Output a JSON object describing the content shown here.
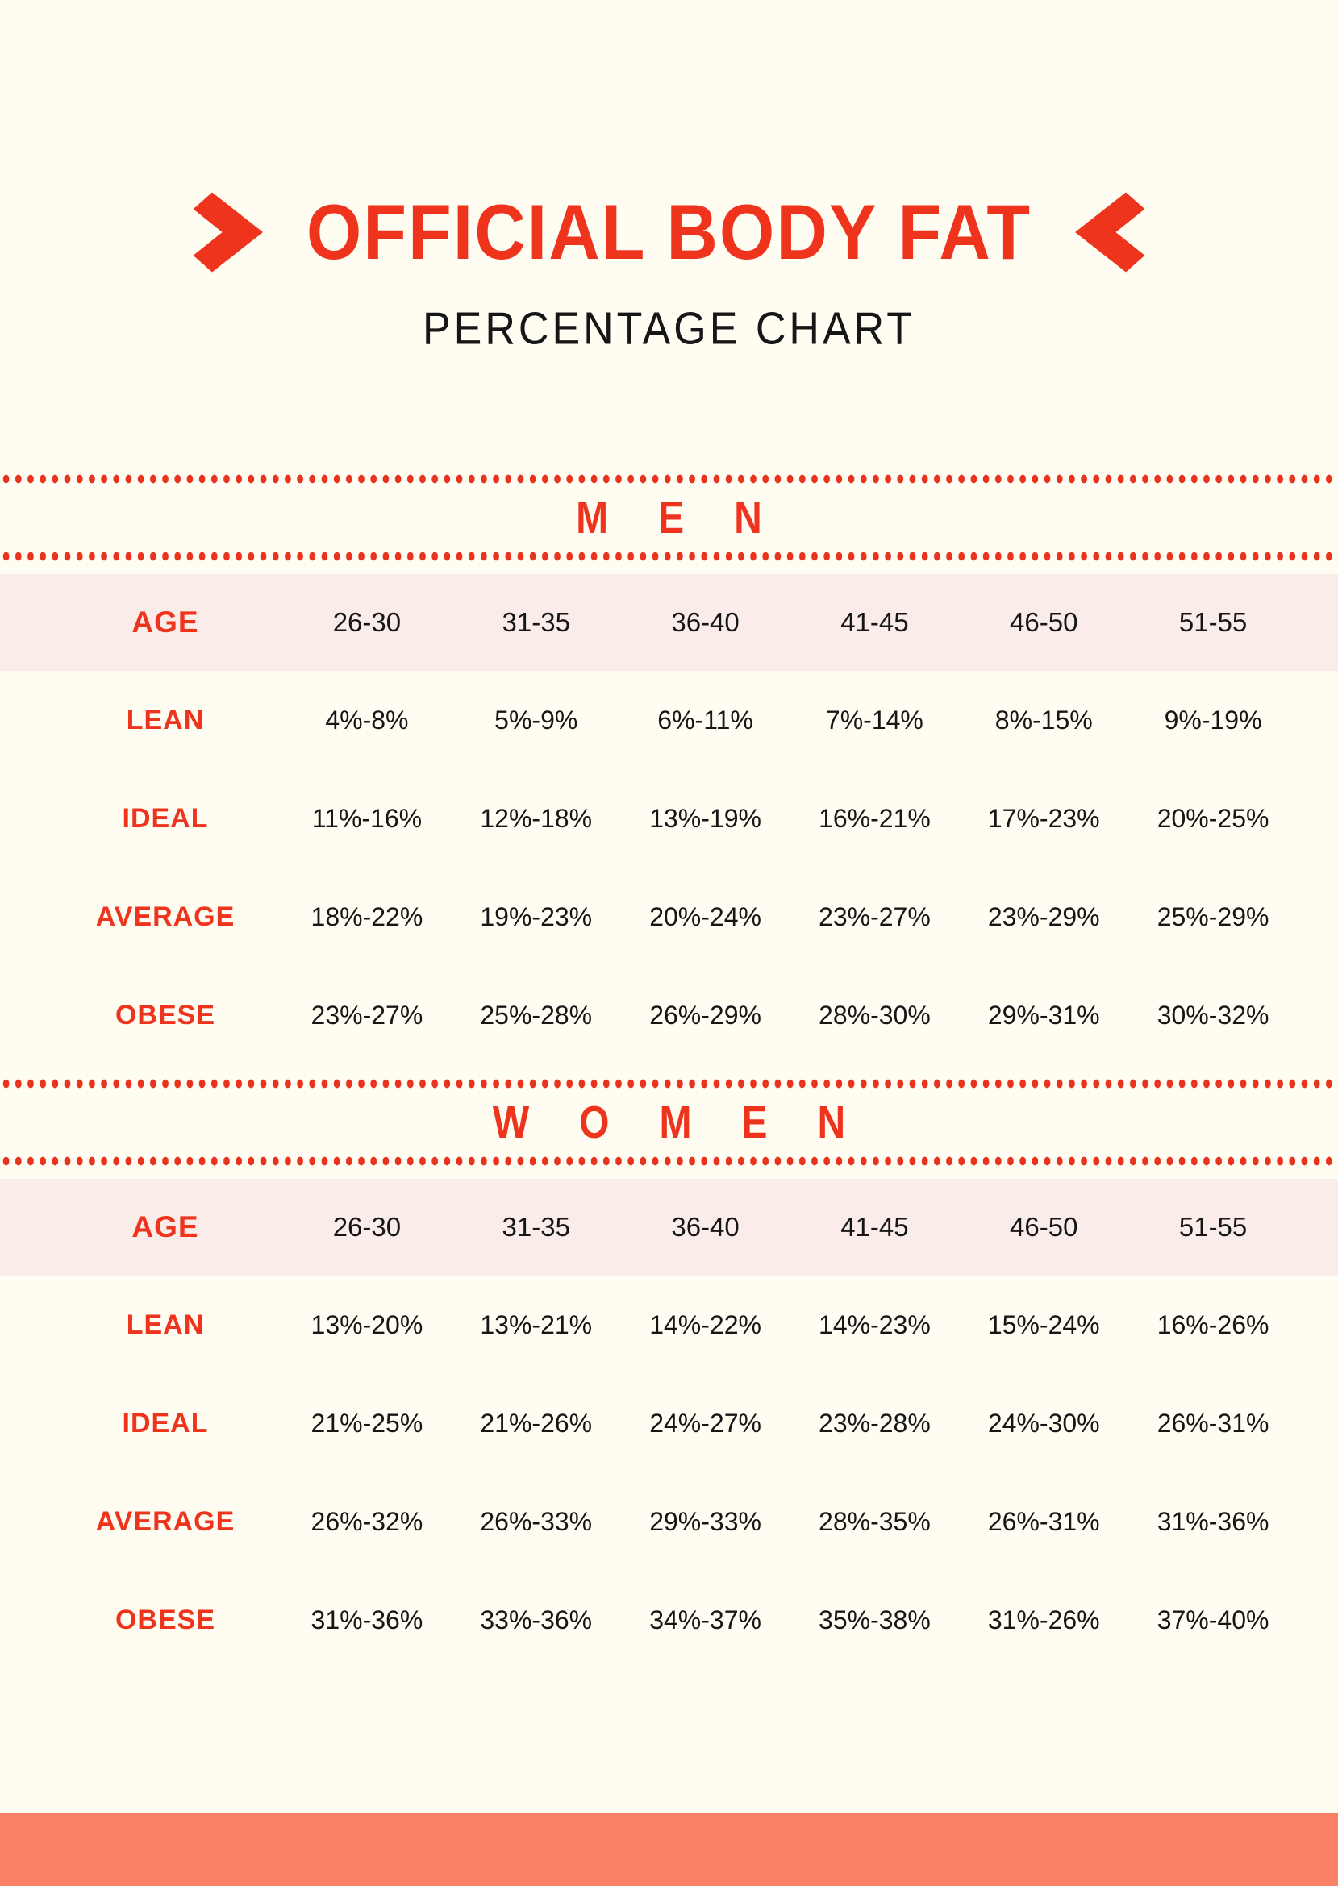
{
  "page": {
    "title": "OFFICIAL BODY FAT",
    "subtitle": "PERCENTAGE CHART",
    "icons": {
      "title_left": "chevron-right-icon",
      "title_right": "chevron-left-icon"
    },
    "colors": {
      "accent": "#EF341E",
      "dot": "#E8331E",
      "background": "#FFFCF2",
      "header_row_bg": "#F9ECE9",
      "footer_bar": "#FA8066",
      "text": "#161616"
    }
  },
  "chart_data": {
    "type": "table",
    "title": "OFFICIAL BODY FAT PERCENTAGE CHART",
    "sections": [
      {
        "label": "MEN",
        "age_header": "AGE",
        "ages": [
          "26-30",
          "31-35",
          "36-40",
          "41-45",
          "46-50",
          "51-55"
        ],
        "rows": [
          {
            "label": "LEAN",
            "values": [
              "4%-8%",
              "5%-9%",
              "6%-11%",
              "7%-14%",
              "8%-15%",
              "9%-19%"
            ]
          },
          {
            "label": "IDEAL",
            "values": [
              "11%-16%",
              "12%-18%",
              "13%-19%",
              "16%-21%",
              "17%-23%",
              "20%-25%"
            ]
          },
          {
            "label": "AVERAGE",
            "values": [
              "18%-22%",
              "19%-23%",
              "20%-24%",
              "23%-27%",
              "23%-29%",
              "25%-29%"
            ]
          },
          {
            "label": "OBESE",
            "values": [
              "23%-27%",
              "25%-28%",
              "26%-29%",
              "28%-30%",
              "29%-31%",
              "30%-32%"
            ]
          }
        ]
      },
      {
        "label": "WOMEN",
        "age_header": "AGE",
        "ages": [
          "26-30",
          "31-35",
          "36-40",
          "41-45",
          "46-50",
          "51-55"
        ],
        "rows": [
          {
            "label": "LEAN",
            "values": [
              "13%-20%",
              "13%-21%",
              "14%-22%",
              "14%-23%",
              "15%-24%",
              "16%-26%"
            ]
          },
          {
            "label": "IDEAL",
            "values": [
              "21%-25%",
              "21%-26%",
              "24%-27%",
              "23%-28%",
              "24%-30%",
              "26%-31%"
            ]
          },
          {
            "label": "AVERAGE",
            "values": [
              "26%-32%",
              "26%-33%",
              "29%-33%",
              "28%-35%",
              "26%-31%",
              "31%-36%"
            ]
          },
          {
            "label": "OBESE",
            "values": [
              "31%-36%",
              "33%-36%",
              "34%-37%",
              "35%-38%",
              "31%-26%",
              "37%-40%"
            ]
          }
        ]
      }
    ]
  }
}
